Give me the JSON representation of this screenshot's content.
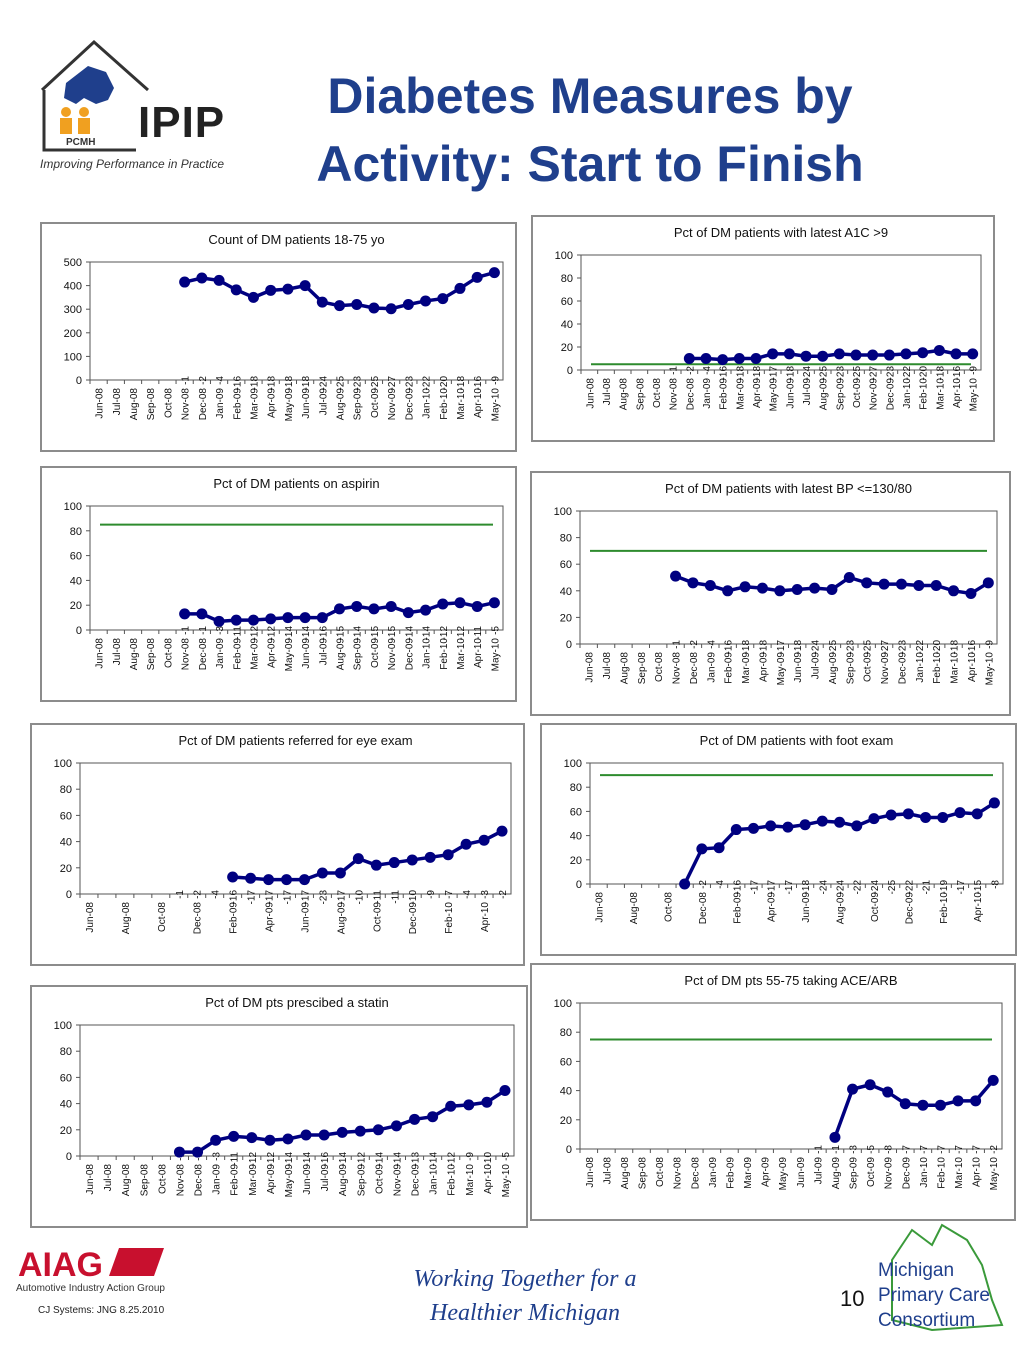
{
  "page_title": "Diabetes Measures by Activity: Start to Finish",
  "logo": {
    "name": "IPIP",
    "sub": "PCMH",
    "tagline": "Improving Performance in Practice"
  },
  "footer": {
    "org_logo": "AIAG",
    "org_sub": "Automotive Industry Action Group",
    "credit": "CJ Systems: JNG  8.25.2010",
    "slogan_line1": "Working Together for a",
    "slogan_line2": "Healthier Michigan",
    "page_number": "10",
    "consortium_line1": "Michigan",
    "consortium_line2": "Primary Care",
    "consortium_line3": "Consortium"
  },
  "colors": {
    "line": "#000080",
    "target": "#2e8b2e",
    "title": "#1f3f8c"
  },
  "chart_data": [
    {
      "id": "count",
      "type": "line",
      "title": "Count of DM patients 18-75 yo",
      "ylim": [
        0,
        500
      ],
      "yticks": [
        0,
        100,
        200,
        300,
        400,
        500
      ],
      "categories": [
        "Jun-08",
        "Jul-08",
        "Aug-08",
        "Sep-08",
        "Oct-08",
        "Nov-08",
        "Dec-08",
        "Jan-09",
        "Feb-09",
        "Mar-09",
        "Apr-09",
        "May-09",
        "Jun-09",
        "Jul-09",
        "Aug-09",
        "Sep-09",
        "Oct-09",
        "Nov-09",
        "Dec-09",
        "Jan-10",
        "Feb-10",
        "Mar-10",
        "Apr-10",
        "May-10"
      ],
      "annotations": [
        "",
        "",
        "",
        "",
        "",
        "-1",
        "-2",
        "-4",
        "-16",
        "-18",
        "-18",
        "-18",
        "-18",
        "-24",
        "-25",
        "-23",
        "-25",
        "-27",
        "-23",
        "-22",
        "-20",
        "-18",
        "-16",
        "-9"
      ],
      "values": [
        null,
        null,
        null,
        null,
        null,
        415,
        432,
        422,
        382,
        350,
        380,
        385,
        400,
        330,
        315,
        320,
        305,
        302,
        320,
        335,
        345,
        388,
        435,
        455
      ],
      "target": null
    },
    {
      "id": "a1c",
      "type": "line",
      "title": "Pct of DM patients with latest A1C >9",
      "ylim": [
        0,
        100
      ],
      "yticks": [
        0,
        20,
        40,
        60,
        80,
        100
      ],
      "categories": [
        "Jun-08",
        "Jul-08",
        "Aug-08",
        "Sep-08",
        "Oct-08",
        "Nov-08",
        "Dec-08",
        "Jan-09",
        "Feb-09",
        "Mar-09",
        "Apr-09",
        "May-09",
        "Jun-09",
        "Jul-09",
        "Aug-09",
        "Sep-09",
        "Oct-09",
        "Nov-09",
        "Dec-09",
        "Jan-10",
        "Feb-10",
        "Mar-10",
        "Apr-10",
        "May-10"
      ],
      "annotations": [
        "",
        "",
        "",
        "",
        "",
        "-1",
        "-2",
        "-4",
        "-16",
        "-18",
        "-18",
        "-17",
        "-18",
        "-24",
        "-25",
        "-23",
        "-25",
        "-27",
        "-23",
        "-22",
        "-20",
        "-18",
        "-16",
        "-9"
      ],
      "values": [
        null,
        null,
        null,
        null,
        null,
        null,
        10,
        10,
        9,
        10,
        10,
        14,
        14,
        12,
        12,
        14,
        13,
        13,
        13,
        14,
        15,
        17,
        14,
        14
      ],
      "target": 5
    },
    {
      "id": "aspirin",
      "type": "line",
      "title": "Pct of DM patients on aspirin",
      "ylim": [
        0,
        100
      ],
      "yticks": [
        0,
        20,
        40,
        60,
        80,
        100
      ],
      "categories": [
        "Jun-08",
        "Jul-08",
        "Aug-08",
        "Sep-08",
        "Oct-08",
        "Nov-08",
        "Dec-08",
        "Jan-09",
        "Feb-09",
        "Mar-09",
        "Apr-09",
        "May-09",
        "Jun-09",
        "Jul-09",
        "Aug-09",
        "Sep-09",
        "Oct-09",
        "Nov-09",
        "Dec-09",
        "Jan-10",
        "Feb-10",
        "Mar-10",
        "Apr-10",
        "May-10"
      ],
      "annotations": [
        "",
        "",
        "",
        "",
        "",
        "-1",
        "-1",
        "-3",
        "-11",
        "-12",
        "-12",
        "-14",
        "-14",
        "-16",
        "-15",
        "-14",
        "-15",
        "-15",
        "-14",
        "-14",
        "-12",
        "-12",
        "-11",
        "-5"
      ],
      "values": [
        null,
        null,
        null,
        null,
        null,
        13,
        13,
        7,
        8,
        8,
        9,
        10,
        10,
        10,
        17,
        19,
        17,
        19,
        14,
        16,
        21,
        22,
        19,
        22
      ],
      "target": 85
    },
    {
      "id": "bp",
      "type": "line",
      "title": "Pct of DM patients with latest BP <=130/80",
      "ylim": [
        0,
        100
      ],
      "yticks": [
        0,
        20,
        40,
        60,
        80,
        100
      ],
      "categories": [
        "Jun-08",
        "Jul-08",
        "Aug-08",
        "Sep-08",
        "Oct-08",
        "Nov-08",
        "Dec-08",
        "Jan-09",
        "Feb-09",
        "Mar-09",
        "Apr-09",
        "May-09",
        "Jun-09",
        "Jul-09",
        "Aug-09",
        "Sep-09",
        "Oct-09",
        "Nov-09",
        "Dec-09",
        "Jan-10",
        "Feb-10",
        "Mar-10",
        "Apr-10",
        "May-10"
      ],
      "annotations": [
        "",
        "",
        "",
        "",
        "",
        "-1",
        "-2",
        "-4",
        "-16",
        "-18",
        "-18",
        "-17",
        "-18",
        "-24",
        "-25",
        "-23",
        "-25",
        "-27",
        "-23",
        "-22",
        "-20",
        "-18",
        "-16",
        "-9"
      ],
      "values": [
        null,
        null,
        null,
        null,
        null,
        51,
        46,
        44,
        40,
        43,
        42,
        40,
        41,
        42,
        41,
        50,
        46,
        45,
        45,
        44,
        44,
        40,
        38,
        46
      ],
      "target": 70
    },
    {
      "id": "eye",
      "type": "line",
      "title": "Pct of DM patients referred for eye exam",
      "ylim": [
        0,
        100
      ],
      "yticks": [
        0,
        20,
        40,
        60,
        80,
        100
      ],
      "categories": [
        "Jun-08",
        "",
        "Aug-08",
        "",
        "Oct-08",
        "",
        "Dec-08",
        "",
        "Feb-09",
        "",
        "Apr-09",
        "",
        "Jun-09",
        "",
        "Aug-09",
        "",
        "Oct-09",
        "",
        "Dec-09",
        "",
        "Feb-10",
        "",
        "Apr-10",
        ""
      ],
      "annotations": [
        "",
        "",
        "",
        "",
        "",
        "-1",
        "-2",
        "-4",
        "-16",
        "-17",
        "-17",
        "-17",
        "-17",
        "-23",
        "-17",
        "-10",
        "-11",
        "-11",
        "-10",
        "-9",
        "-7",
        "-4",
        "-3",
        "-2"
      ],
      "values": [
        null,
        null,
        null,
        null,
        null,
        null,
        null,
        null,
        13,
        12,
        11,
        11,
        11,
        16,
        16,
        27,
        22,
        24,
        26,
        28,
        30,
        38,
        41,
        48
      ],
      "target": null
    },
    {
      "id": "foot",
      "type": "line",
      "title": "Pct of DM patients with foot exam",
      "ylim": [
        0,
        100
      ],
      "yticks": [
        0,
        20,
        40,
        60,
        80,
        100
      ],
      "categories": [
        "Jun-08",
        "",
        "Aug-08",
        "",
        "Oct-08",
        "",
        "Dec-08",
        "",
        "Feb-09",
        "",
        "Apr-09",
        "",
        "Jun-09",
        "",
        "Aug-09",
        "",
        "Oct-09",
        "",
        "Dec-09",
        "",
        "Feb-10",
        "",
        "Apr-10",
        ""
      ],
      "annotations": [
        "",
        "",
        "",
        "",
        "",
        "-1",
        "-2",
        "-4",
        "-16",
        "-17",
        "-17",
        "-17",
        "-18",
        "-24",
        "-24",
        "-22",
        "-24",
        "-25",
        "-22",
        "-21",
        "-19",
        "-17",
        "-15",
        "-8"
      ],
      "values": [
        null,
        null,
        null,
        null,
        null,
        0,
        29,
        30,
        45,
        46,
        48,
        47,
        49,
        52,
        51,
        48,
        54,
        57,
        58,
        55,
        55,
        59,
        58,
        67
      ],
      "target": 90
    },
    {
      "id": "statin",
      "type": "line",
      "title": "Pct of DM pts prescibed a statin",
      "ylim": [
        0,
        100
      ],
      "yticks": [
        0,
        20,
        40,
        60,
        80,
        100
      ],
      "categories": [
        "Jun-08",
        "Jul-08",
        "Aug-08",
        "Sep-08",
        "Oct-08",
        "Nov-08",
        "Dec-08",
        "Jan-09",
        "Feb-09",
        "Mar-09",
        "Apr-09",
        "May-09",
        "Jun-09",
        "Jul-09",
        "Aug-09",
        "Sep-09",
        "Oct-09",
        "Nov-09",
        "Dec-09",
        "Jan-10",
        "Feb-10",
        "Mar-10",
        "Apr-10",
        "May-10"
      ],
      "annotations": [
        "",
        "",
        "",
        "",
        "",
        "-1",
        "-1",
        "-3",
        "-11",
        "-12",
        "-12",
        "-14",
        "-14",
        "-16",
        "-14",
        "-12",
        "-14",
        "-14",
        "-13",
        "-14",
        "-12",
        "-9",
        "-10",
        "-5"
      ],
      "values": [
        null,
        null,
        null,
        null,
        null,
        3,
        3,
        12,
        15,
        14,
        12,
        13,
        16,
        16,
        18,
        19,
        20,
        23,
        28,
        30,
        38,
        39,
        41,
        50
      ],
      "target": null
    },
    {
      "id": "acearb",
      "type": "line",
      "title": "Pct of DM pts 55-75 taking ACE/ARB",
      "ylim": [
        0,
        100
      ],
      "yticks": [
        0,
        20,
        40,
        60,
        80,
        100
      ],
      "categories": [
        "Jun-08",
        "Jul-08",
        "Aug-08",
        "Sep-08",
        "Oct-08",
        "Nov-08",
        "Dec-08",
        "Jan-09",
        "Feb-09",
        "Mar-09",
        "Apr-09",
        "May-09",
        "Jun-09",
        "Jul-09",
        "Aug-09",
        "Sep-09",
        "Oct-09",
        "Nov-09",
        "Dec-09",
        "Jan-10",
        "Feb-10",
        "Mar-10",
        "Apr-10",
        "May-10"
      ],
      "annotations": [
        "",
        "",
        "",
        "",
        "",
        "",
        "",
        "",
        "",
        "",
        "",
        "",
        "",
        "-1",
        "-1",
        "-3",
        "-5",
        "-8",
        "-7",
        "-7",
        "-7",
        "-7",
        "-7",
        "-2"
      ],
      "values": [
        null,
        null,
        null,
        null,
        null,
        null,
        null,
        null,
        null,
        null,
        null,
        null,
        null,
        null,
        8,
        41,
        44,
        39,
        31,
        30,
        30,
        33,
        33,
        47
      ],
      "target": 75
    }
  ]
}
